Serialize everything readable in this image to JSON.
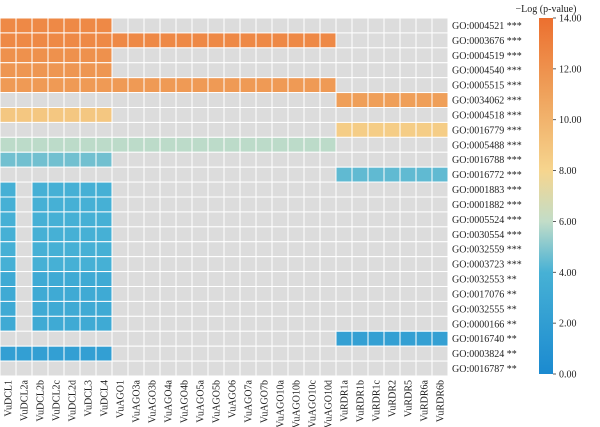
{
  "chart_data": {
    "type": "heatmap",
    "columns": [
      "VuDCL1",
      "VuDCL2a",
      "VuDCL2b",
      "VuDCL2c",
      "VuDCL2d",
      "VuDCL3",
      "VuDCL4",
      "VuAGO1",
      "VuAGO3a",
      "VuAGO3b",
      "VuAGO4a",
      "VuAGO4b",
      "VuAGO5a",
      "VuAGO5b",
      "VuAGO6",
      "VuAGO7a",
      "VuAGO7b",
      "VuAGO10a",
      "VuAGO10b",
      "VuAGO10c",
      "VuAGO10d",
      "VuRDR1a",
      "VuRDR1b",
      "VuRDR1c",
      "VuRDR2",
      "VuRDR5",
      "VuRDR6a",
      "VuRDR6b"
    ],
    "rows": [
      {
        "term": "GO:0004521",
        "sig": "***",
        "value": 12.5,
        "members": [
          0,
          1,
          2,
          3,
          4,
          5,
          6
        ]
      },
      {
        "term": "GO:0003676",
        "sig": "***",
        "value": 12.5,
        "members": [
          0,
          1,
          2,
          3,
          4,
          5,
          6,
          7,
          8,
          9,
          10,
          11,
          12,
          13,
          14,
          15,
          16,
          17,
          18,
          19,
          20
        ]
      },
      {
        "term": "GO:0004519",
        "sig": "***",
        "value": 12.0,
        "members": [
          0,
          1,
          2,
          3,
          4,
          5,
          6
        ]
      },
      {
        "term": "GO:0004540",
        "sig": "***",
        "value": 11.7,
        "members": [
          0,
          1,
          2,
          3,
          4,
          5,
          6
        ]
      },
      {
        "term": "GO:0005515",
        "sig": "***",
        "value": 11.5,
        "members": [
          0,
          1,
          2,
          3,
          4,
          5,
          6,
          7,
          8,
          9,
          10,
          11,
          12,
          13,
          14,
          15,
          16,
          17,
          18,
          19,
          20
        ]
      },
      {
        "term": "GO:0034062",
        "sig": "***",
        "value": 11.2,
        "members": [
          21,
          22,
          23,
          24,
          25,
          26,
          27
        ]
      },
      {
        "term": "GO:0004518",
        "sig": "***",
        "value": 8.8,
        "members": [
          0,
          1,
          2,
          3,
          4,
          5,
          6
        ]
      },
      {
        "term": "GO:0016779",
        "sig": "***",
        "value": 8.5,
        "members": [
          21,
          22,
          23,
          24,
          25,
          26,
          27
        ]
      },
      {
        "term": "GO:0005488",
        "sig": "***",
        "value": 5.9,
        "members": [
          0,
          1,
          2,
          3,
          4,
          5,
          6,
          7,
          8,
          9,
          10,
          11,
          12,
          13,
          14,
          15,
          16,
          17,
          18,
          19,
          20
        ]
      },
      {
        "term": "GO:0016788",
        "sig": "***",
        "value": 4.7,
        "members": [
          0,
          1,
          2,
          3,
          4,
          5,
          6
        ]
      },
      {
        "term": "GO:0016772",
        "sig": "***",
        "value": 4.4,
        "members": [
          21,
          22,
          23,
          24,
          25,
          26,
          27
        ]
      },
      {
        "term": "GO:0001883",
        "sig": "***",
        "value": 3.9,
        "members": [
          0,
          2,
          3,
          4,
          5,
          6
        ]
      },
      {
        "term": "GO:0001882",
        "sig": "***",
        "value": 3.9,
        "members": [
          0,
          2,
          3,
          4,
          5,
          6
        ]
      },
      {
        "term": "GO:0005524",
        "sig": "***",
        "value": 3.9,
        "members": [
          0,
          2,
          3,
          4,
          5,
          6
        ]
      },
      {
        "term": "GO:0030554",
        "sig": "***",
        "value": 3.9,
        "members": [
          0,
          2,
          3,
          4,
          5,
          6
        ]
      },
      {
        "term": "GO:0032559",
        "sig": "***",
        "value": 3.9,
        "members": [
          0,
          2,
          3,
          4,
          5,
          6
        ]
      },
      {
        "term": "GO:0003723",
        "sig": "***",
        "value": 3.9,
        "members": [
          0,
          2,
          3,
          4,
          5,
          6
        ]
      },
      {
        "term": "GO:0032553",
        "sig": "**",
        "value": 3.3,
        "members": [
          0,
          2,
          3,
          4,
          5,
          6
        ]
      },
      {
        "term": "GO:0017076",
        "sig": "**",
        "value": 3.3,
        "members": [
          0,
          2,
          3,
          4,
          5,
          6
        ]
      },
      {
        "term": "GO:0032555",
        "sig": "**",
        "value": 3.3,
        "members": [
          0,
          2,
          3,
          4,
          5,
          6
        ]
      },
      {
        "term": "GO:0000166",
        "sig": "**",
        "value": 3.3,
        "members": [
          0,
          2,
          3,
          4,
          5,
          6
        ]
      },
      {
        "term": "GO:0016740",
        "sig": "**",
        "value": 2.3,
        "members": [
          21,
          22,
          23,
          24,
          25,
          26,
          27
        ]
      },
      {
        "term": "GO:0003824",
        "sig": "**",
        "value": 2.2,
        "members": [
          0,
          1,
          2,
          3,
          4,
          5,
          6
        ]
      },
      {
        "term": "GO:0016787",
        "sig": "**",
        "value": null,
        "members": []
      }
    ],
    "colorbar": {
      "title": "−Log (p-value)",
      "min": 0,
      "max": 14,
      "ticks": [
        "0.00",
        "2.00",
        "4.00",
        "6.00",
        "8.00",
        "10.00",
        "12.00",
        "14.00"
      ],
      "tick_values": [
        0,
        2,
        4,
        6,
        8,
        10,
        12,
        14
      ],
      "stops": [
        {
          "v": 0,
          "color": "#1b8ad0"
        },
        {
          "v": 4,
          "color": "#47b1d5"
        },
        {
          "v": 6,
          "color": "#c2ddc8"
        },
        {
          "v": 8,
          "color": "#f6d58e"
        },
        {
          "v": 11,
          "color": "#efa25c"
        },
        {
          "v": 14,
          "color": "#ec6f2f"
        }
      ]
    },
    "empty_color": "#dcdcdc",
    "grid_color": "#ffffff"
  }
}
